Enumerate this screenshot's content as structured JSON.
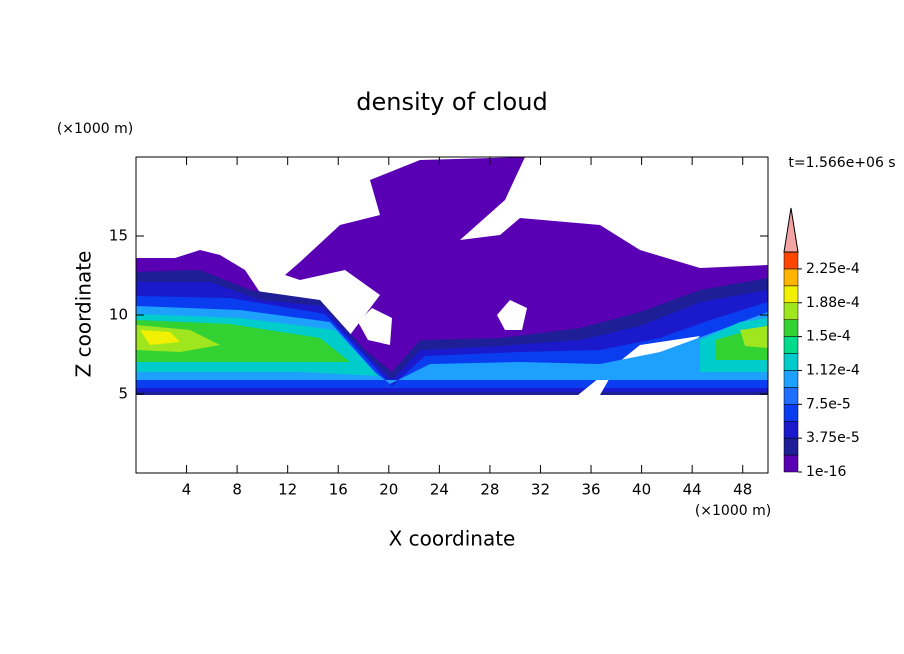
{
  "chart_data": {
    "type": "contour",
    "title": "density of cloud",
    "x_label": "X coordinate",
    "y_label": "Z coordinate",
    "x_unit": "(×1000 m)",
    "y_unit": "(×1000 m)",
    "annotation": "t=1.566e+06 s",
    "xlim": [
      0,
      50
    ],
    "xticks": [
      4,
      8,
      12,
      16,
      20,
      24,
      28,
      32,
      36,
      40,
      44,
      48
    ],
    "ylim": [
      0,
      20
    ],
    "yticks": [
      5,
      10,
      15
    ],
    "colorbar": {
      "clim": [
        1e-16,
        0.00024375
      ],
      "ticks": [
        1e-16,
        {
          "value": 3.75e-05,
          "label": "3.75e-5"
        },
        {
          "value": 7.5e-05,
          "label": "7.5e-5"
        },
        {
          "value": 0.0001125,
          "label": "1.12e-4"
        },
        {
          "value": 0.00015,
          "label": "1.5e-4"
        },
        {
          "value": 0.0001875,
          "label": "1.88e-4"
        },
        {
          "value": 0.000225,
          "label": "2.25e-4"
        }
      ],
      "colors": [
        "#5a00b4",
        "#1e1e96",
        "#1a1acc",
        "#0a3cf0",
        "#1e6eff",
        "#1ea0ff",
        "#00cccc",
        "#00dc8c",
        "#32d232",
        "#a0e61e",
        "#f0f000",
        "#ffb400",
        "#ff4600"
      ],
      "extend_color": "#f4a4a4"
    }
  }
}
